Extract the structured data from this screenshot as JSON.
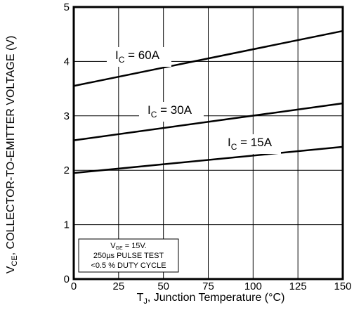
{
  "chart_data": {
    "type": "line",
    "xlabel": {
      "main": "T",
      "sub": "J",
      "rest": ", Junction Temperature (°C)"
    },
    "ylabel": {
      "main": "V",
      "sub": "CE",
      "rest": ", COLLECTOR-TO-EMITTER VOLTAGE (V)"
    },
    "xlim": [
      0,
      150
    ],
    "ylim": [
      0,
      5
    ],
    "xticks": [
      0,
      25,
      50,
      75,
      100,
      125,
      150
    ],
    "yticks": [
      0,
      1,
      2,
      3,
      4,
      5
    ],
    "grid": true,
    "series": [
      {
        "name": "60A",
        "label_prefix": "I",
        "label_sub": "C",
        "label_rest": " = 60A",
        "x": [
          0,
          150
        ],
        "y": [
          3.55,
          4.56
        ]
      },
      {
        "name": "30A",
        "label_prefix": "I",
        "label_sub": "C",
        "label_rest": " = 30A",
        "x": [
          0,
          150
        ],
        "y": [
          2.55,
          3.23
        ]
      },
      {
        "name": "15A",
        "label_prefix": "I",
        "label_sub": "C",
        "label_rest": " = 15A",
        "x": [
          0,
          150
        ],
        "y": [
          1.95,
          2.43
        ]
      }
    ],
    "annotation": {
      "line1_prefix": "V",
      "line1_sub": "GE",
      "line1_rest": " = 15V.",
      "line2": "250µs PULSE TEST",
      "line3": "<0.5 % DUTY CYCLE"
    }
  }
}
